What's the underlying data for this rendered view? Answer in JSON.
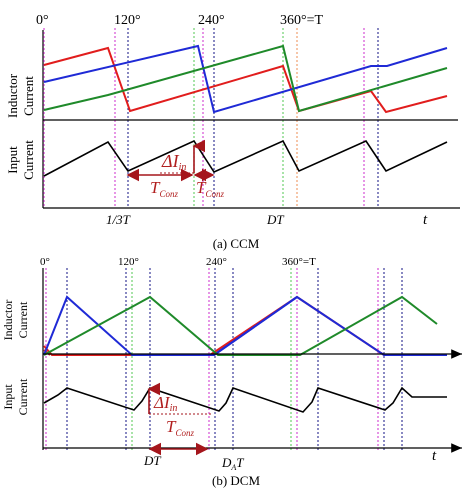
{
  "colors": {
    "red": "#e11d1d",
    "blue": "#1f2ad6",
    "green": "#1f8a2a",
    "black": "#000000",
    "annotation": "#a5161c",
    "magenta_dotted": "#d64fd6",
    "navy_dotted": "#3b3b99",
    "lightgreen_dotted": "#6fd06f",
    "orange_dotted": "#f0a070"
  },
  "ccm": {
    "phase_labels": [
      "0°",
      "120°",
      "240°",
      "360°=T"
    ],
    "y_label_top": [
      "Inductor",
      "Current"
    ],
    "y_label_bottom": [
      "Input",
      "Current"
    ],
    "delta_label": "ΔI",
    "delta_sub": "in",
    "tconz_label": "T",
    "tconz_sub": "Conz",
    "x_tick_1": "1/3T",
    "x_tick_2": "DT",
    "t_label": "t",
    "caption": "(a) CCM"
  },
  "dcm": {
    "phase_labels": [
      "0°",
      "120°",
      "240°",
      "360°=T"
    ],
    "y_label_top": [
      "Inductor",
      "Current"
    ],
    "y_label_bottom": [
      "Input",
      "Current"
    ],
    "delta_label": "ΔI",
    "delta_sub": "in",
    "tconz_label": "T",
    "tconz_sub": "Conz",
    "x_tick_1": "DT",
    "x_tick_2_main": "D",
    "x_tick_2_sub": "A",
    "x_tick_2_tail": "T",
    "t_label": "t",
    "caption": "(b) DCM"
  }
}
